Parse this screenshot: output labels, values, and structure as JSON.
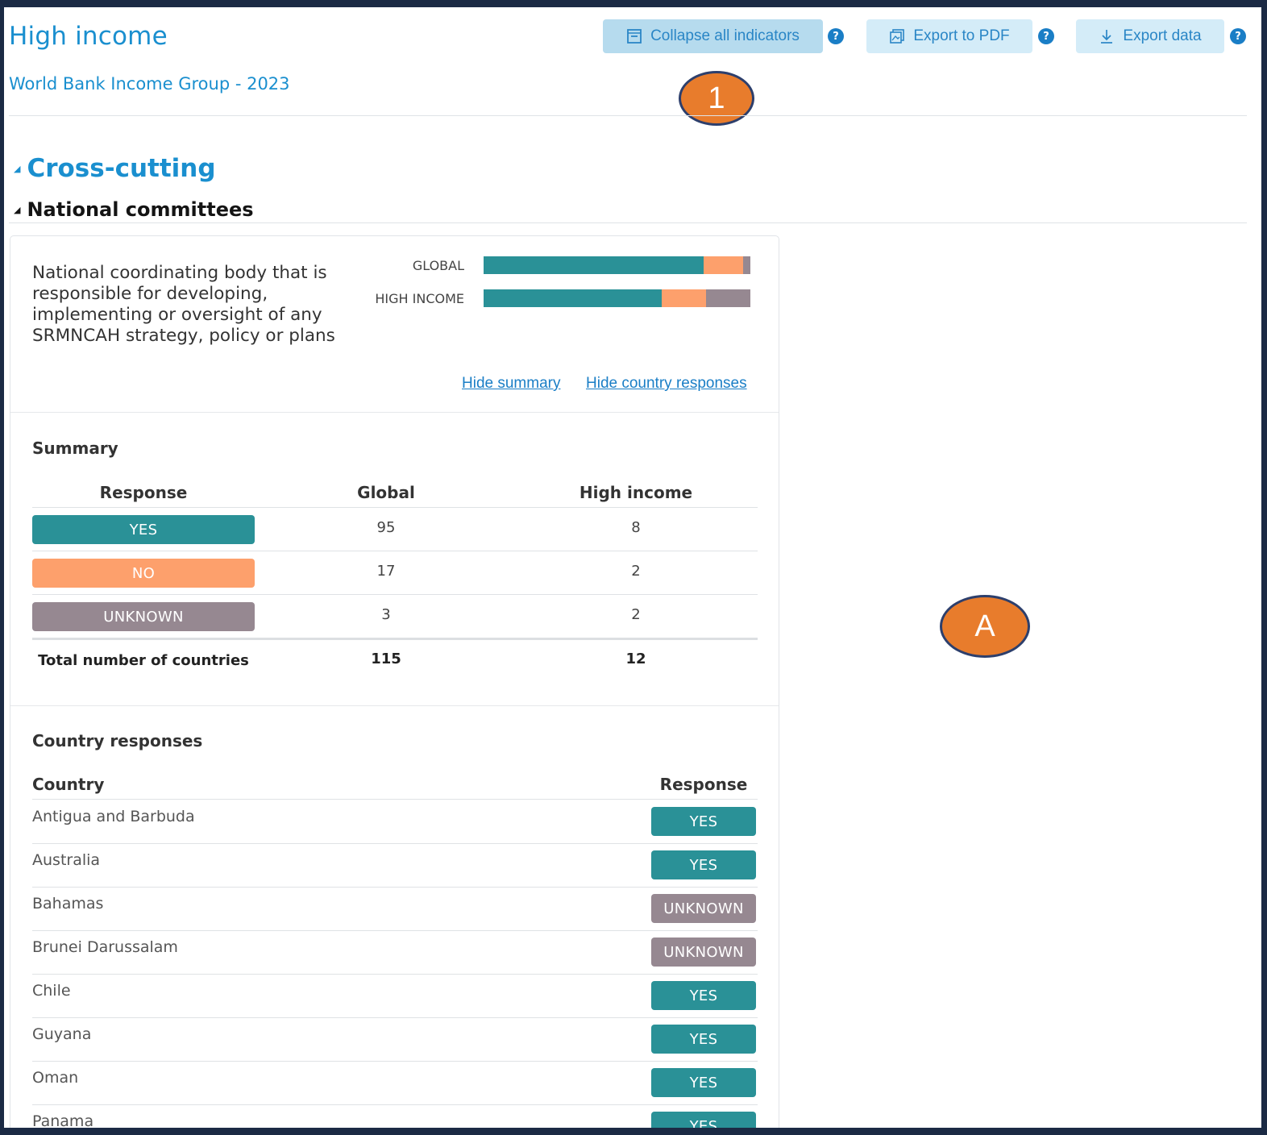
{
  "header": {
    "title": "High income",
    "subtitle": "World Bank Income Group - 2023",
    "buttons": {
      "collapse": "Collapse all indicators",
      "export_pdf": "Export to PDF",
      "export_data": "Export data"
    },
    "help_glyph": "?"
  },
  "markers": {
    "one": "1",
    "a": "A"
  },
  "sections": {
    "cross_cutting": "Cross-cutting",
    "national_committees": "National committees",
    "caret_glyph": "◢"
  },
  "indicator": {
    "description": "National coordinating body that is responsible for developing, implementing or oversight of any SRMNCAH strategy, policy or plans",
    "bars": [
      {
        "label": "GLOBAL",
        "yes": 95,
        "no": 17,
        "unknown": 3
      },
      {
        "label": "HIGH INCOME",
        "yes": 8,
        "no": 2,
        "unknown": 2
      }
    ],
    "links": {
      "hide_summary": "Hide summary",
      "hide_country": "Hide country responses"
    }
  },
  "summary": {
    "title": "Summary",
    "headers": {
      "response": "Response",
      "global": "Global",
      "high_income": "High income"
    },
    "rows": [
      {
        "response": "YES",
        "global": "95",
        "high_income": "8"
      },
      {
        "response": "NO",
        "global": "17",
        "high_income": "2"
      },
      {
        "response": "UNKNOWN",
        "global": "3",
        "high_income": "2"
      }
    ],
    "total": {
      "label": "Total number of countries",
      "global": "115",
      "high_income": "12"
    }
  },
  "country_responses": {
    "title": "Country responses",
    "headers": {
      "country": "Country",
      "response": "Response"
    },
    "rows": [
      {
        "country": "Antigua and Barbuda",
        "response": "YES"
      },
      {
        "country": "Australia",
        "response": "YES"
      },
      {
        "country": "Bahamas",
        "response": "UNKNOWN"
      },
      {
        "country": "Brunei Darussalam",
        "response": "UNKNOWN"
      },
      {
        "country": "Chile",
        "response": "YES"
      },
      {
        "country": "Guyana",
        "response": "YES"
      },
      {
        "country": "Oman",
        "response": "YES"
      },
      {
        "country": "Panama",
        "response": "YES"
      }
    ]
  },
  "colors": {
    "yes": "#2a9197",
    "no": "#fda06c",
    "unknown": "#968891",
    "accent": "#1a8fcf",
    "marker": "#e87c2c"
  },
  "icons": {
    "collapse": "collapse-icon",
    "pdf": "pdf-icon",
    "download": "download-icon",
    "help": "help-icon"
  }
}
